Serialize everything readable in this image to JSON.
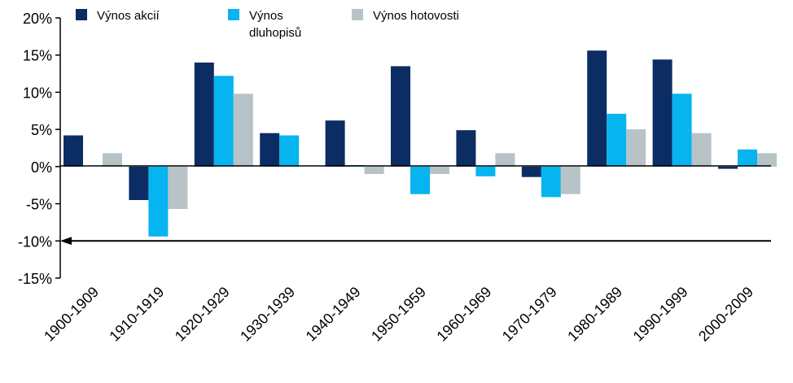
{
  "chart_data": {
    "type": "bar",
    "categories": [
      "1900-1909",
      "1910-1919",
      "1920-1929",
      "1930-1939",
      "1940-1949",
      "1950-1959",
      "1960-1969",
      "1970-1979",
      "1980-1989",
      "1990-1999",
      "2000-2009"
    ],
    "series": [
      {
        "name": "Výnos akcií",
        "color": "#0c2d63",
        "values": [
          4.2,
          -4.5,
          14.0,
          4.5,
          6.2,
          13.5,
          4.9,
          -1.4,
          15.6,
          14.4,
          -0.3
        ]
      },
      {
        "name": "Výnos dluhopisů",
        "color": "#06b4ef",
        "values": [
          0.0,
          -9.4,
          12.2,
          4.2,
          0.2,
          -3.7,
          -1.3,
          -4.1,
          7.1,
          9.8,
          2.3
        ]
      },
      {
        "name": "Výnos hotovosti",
        "color": "#b7c3c7",
        "values": [
          1.8,
          -5.7,
          9.8,
          0.0,
          -1.0,
          -1.0,
          1.8,
          -3.7,
          5.0,
          4.5,
          1.8
        ]
      }
    ],
    "yticks": [
      "20%",
      "15%",
      "10%",
      "5%",
      "0%",
      "-5%",
      "-10%",
      "-15%"
    ],
    "ylim": [
      -15,
      20
    ],
    "reference_line": {
      "value": -10,
      "arrow": "left"
    },
    "legend_position": "top",
    "xlabel": "",
    "ylabel": ""
  }
}
